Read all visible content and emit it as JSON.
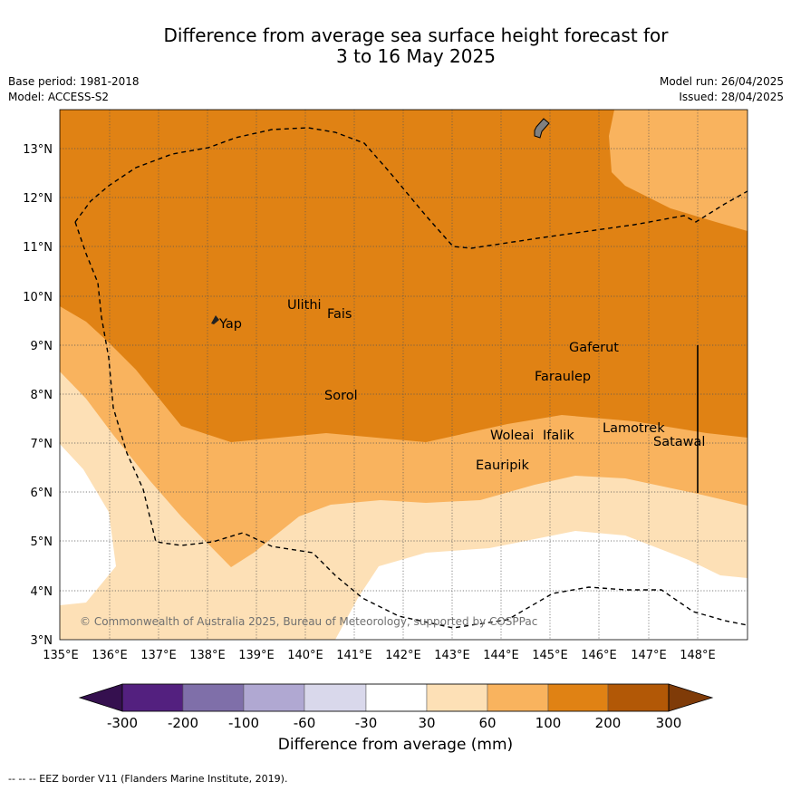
{
  "title_line1": "Difference from average sea surface height forecast for",
  "title_line2": "3 to 16 May 2025",
  "meta": {
    "base_period": "Base period: 1981-2018",
    "model": "Model: ACCESS-S2",
    "model_run": "Model run: 26/04/2025",
    "issued": "Issued: 28/04/2025"
  },
  "map": {
    "x_ticks": [
      "135°E",
      "136°E",
      "137°E",
      "138°E",
      "139°E",
      "140°E",
      "141°E",
      "142°E",
      "143°E",
      "144°E",
      "145°E",
      "146°E",
      "147°E",
      "148°E"
    ],
    "y_ticks": [
      "13°N",
      "12°N",
      "11°N",
      "10°N",
      "9°N",
      "8°N",
      "7°N",
      "6°N",
      "5°N",
      "4°N",
      "3°N"
    ],
    "places": [
      "Yap",
      "Ulithi",
      "Fais",
      "Gaferut",
      "Faraulep",
      "Sorol",
      "Woleai",
      "Ifalik",
      "Lamotrek",
      "Satawal",
      "Eauripik"
    ],
    "copyright": "© Commonwealth of Australia 2025, Bureau of Meteorology, supported by COSPPac"
  },
  "colorbar": {
    "labels": [
      "-300",
      "-200",
      "-100",
      "-60",
      "-30",
      "30",
      "60",
      "100",
      "200",
      "300"
    ],
    "colors": [
      "#35104f",
      "#53207f",
      "#7f6fa9",
      "#b0a8d2",
      "#d9d8eb",
      "#ffffff",
      "#fde0b6",
      "#f9b35e",
      "#e08214",
      "#b25806",
      "#7f3b08"
    ],
    "title": "Difference from average (mm)"
  },
  "footer": "--  --  -- EEZ border V11 (Flanders Marine Institute, 2019)."
}
